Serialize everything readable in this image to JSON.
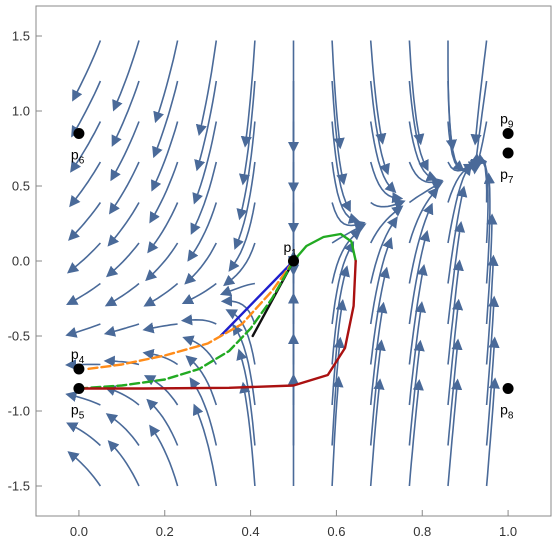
{
  "chart_data": {
    "type": "line",
    "title": "",
    "xlabel": "",
    "ylabel": "",
    "xlim": [
      -0.1,
      1.1
    ],
    "ylim": [
      -1.7,
      1.7
    ],
    "grid": false,
    "x_ticks": [
      {
        "value": 0.0,
        "label": "0.0"
      },
      {
        "value": 0.2,
        "label": "0.2"
      },
      {
        "value": 0.4,
        "label": "0.4"
      },
      {
        "value": 0.6,
        "label": "0.6"
      },
      {
        "value": 0.8,
        "label": "0.8"
      },
      {
        "value": 1.0,
        "label": "1.0"
      }
    ],
    "y_ticks": [
      {
        "value": 1.5,
        "label": "1.5"
      },
      {
        "value": 1.0,
        "label": "1.0"
      },
      {
        "value": 0.5,
        "label": "0.5"
      },
      {
        "value": 0.0,
        "label": "0.0"
      },
      {
        "value": -0.5,
        "label": "-0.5"
      },
      {
        "value": -1.0,
        "label": "-1.0"
      },
      {
        "value": -1.5,
        "label": "-1.5"
      }
    ],
    "stream_color": "#4a6a99",
    "points": [
      {
        "name": "p1",
        "base": "p",
        "sub": "1",
        "x": 0.5,
        "y": 0.0,
        "label_pos": "top-left"
      },
      {
        "name": "p4",
        "base": "p",
        "sub": "4",
        "x": 0.0,
        "y": -0.72,
        "label_pos": "top"
      },
      {
        "name": "p5",
        "base": "p",
        "sub": "5",
        "x": 0.0,
        "y": -0.85,
        "label_pos": "bottom"
      },
      {
        "name": "p6",
        "base": "p",
        "sub": "6",
        "x": 0.0,
        "y": 0.85,
        "label_pos": "bottom"
      },
      {
        "name": "p7",
        "base": "p",
        "sub": "7",
        "x": 1.0,
        "y": 0.72,
        "label_pos": "bottom"
      },
      {
        "name": "p8",
        "base": "p",
        "sub": "8",
        "x": 1.0,
        "y": -0.85,
        "label_pos": "bottom"
      },
      {
        "name": "p9",
        "base": "p",
        "sub": "9",
        "x": 1.0,
        "y": 0.85,
        "label_pos": "top"
      }
    ],
    "series": [
      {
        "color": "#1f1fcc",
        "style": "solid",
        "x": [
          0.5,
          0.33
        ],
        "y": [
          0.0,
          -0.5
        ]
      },
      {
        "color": "#111111",
        "style": "solid",
        "x": [
          0.5,
          0.405
        ],
        "y": [
          0.0,
          -0.5
        ]
      },
      {
        "color": "#ff8c1a",
        "style": "dashed",
        "x": [
          0.5,
          0.45,
          0.38,
          0.3,
          0.2,
          0.1,
          0.02
        ],
        "y": [
          0.0,
          -0.2,
          -0.42,
          -0.55,
          -0.63,
          -0.69,
          -0.72
        ]
      },
      {
        "color": "#22aa22",
        "style": "dashed",
        "x": [
          0.5,
          0.45,
          0.4,
          0.35,
          0.28,
          0.2,
          0.1,
          0.0
        ],
        "y": [
          0.0,
          -0.25,
          -0.45,
          -0.6,
          -0.72,
          -0.79,
          -0.83,
          -0.85
        ]
      },
      {
        "color": "#22aa22",
        "style": "solid",
        "x": [
          0.5,
          0.53,
          0.57,
          0.61,
          0.635,
          0.645
        ],
        "y": [
          0.0,
          0.1,
          0.16,
          0.18,
          0.13,
          0.0
        ]
      },
      {
        "color": "#aa1111",
        "style": "solid",
        "x": [
          0.645,
          0.64,
          0.62,
          0.58,
          0.5,
          0.35,
          0.15,
          0.0
        ],
        "y": [
          0.0,
          -0.3,
          -0.58,
          -0.76,
          -0.83,
          -0.845,
          -0.85,
          -0.85
        ]
      }
    ]
  }
}
